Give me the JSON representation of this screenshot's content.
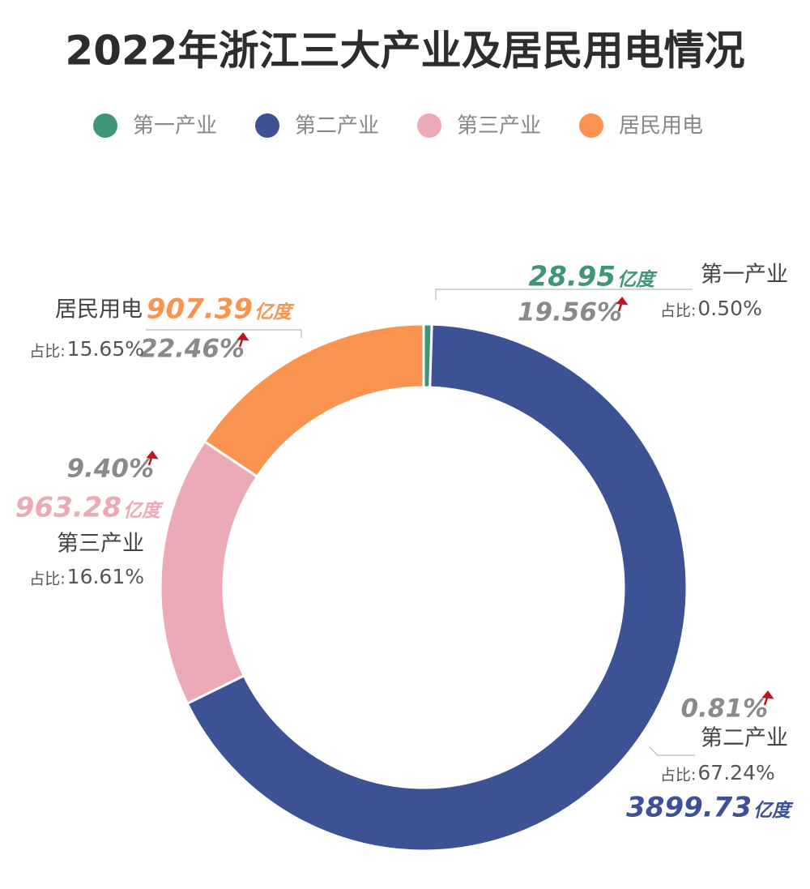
{
  "chart_data": {
    "type": "donut",
    "title": "2022年浙江三大产业及居民用电情况",
    "categories": [
      "第一产业",
      "第二产业",
      "第三产业",
      "居民用电"
    ],
    "values": [
      28.95,
      3899.73,
      963.28,
      907.39
    ],
    "unit": "亿度",
    "colors": [
      "#3f9479",
      "#3d5195",
      "#ecaab7",
      "#fb9350"
    ],
    "share_prefix": "占比:",
    "share_labels": [
      "0.50%",
      "67.24%",
      "16.61%",
      "15.65%"
    ],
    "growth_labels": [
      "19.56%",
      "0.81%",
      "9.40%",
      "22.46%"
    ]
  }
}
